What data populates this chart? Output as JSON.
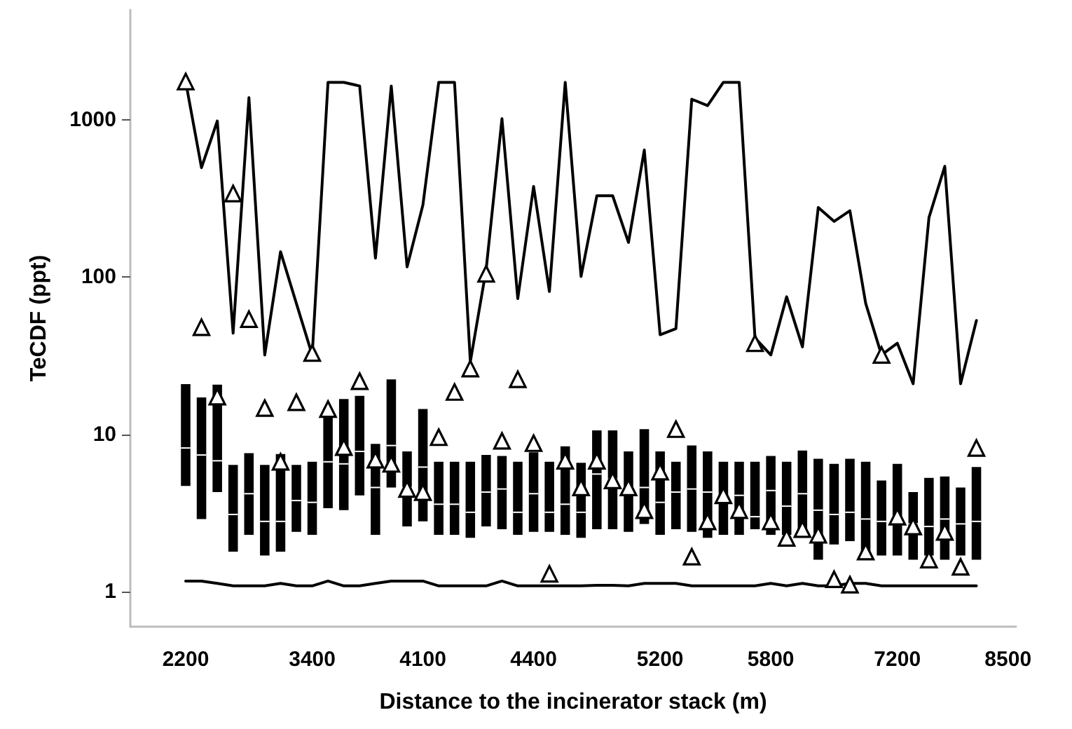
{
  "chart_data": {
    "type": "box",
    "xlabel": "Distance to the incinerator stack (m)",
    "ylabel": "TeCDF (ppt)",
    "log": "y",
    "grid": false,
    "ylim": [
      0.6,
      5000
    ],
    "yticks": [
      1,
      10,
      100,
      1000
    ],
    "categories": [
      null,
      null,
      null,
      "2200",
      null,
      null,
      null,
      null,
      null,
      null,
      null,
      "3400",
      null,
      null,
      null,
      null,
      null,
      null,
      "4100",
      null,
      null,
      null,
      null,
      null,
      null,
      "4400",
      null,
      null,
      null,
      null,
      null,
      null,
      null,
      "5200",
      null,
      null,
      null,
      null,
      null,
      null,
      "5800",
      null,
      null,
      null,
      null,
      null,
      null,
      null,
      "7200",
      null,
      null,
      null,
      null,
      null,
      null,
      "8500"
    ],
    "series": [
      {
        "type": "line",
        "color": "#000000",
        "marker": "none",
        "line_style": "solid",
        "values": [
          null,
          null,
          null,
          1750,
          496,
          982,
          44,
          1382,
          32,
          145,
          68,
          32,
          1730,
          1730,
          1640,
          132,
          1640,
          116,
          287,
          1730,
          1730,
          29,
          112,
          1016,
          73,
          377,
          81,
          1730,
          101,
          329,
          329,
          166,
          642,
          43,
          47,
          1352,
          1230,
          1730,
          1730,
          41,
          32,
          75,
          36,
          277,
          226,
          264,
          68,
          32,
          38,
          21,
          239,
          506,
          21,
          53,
          null,
          null
        ]
      },
      {
        "type": "line",
        "color": "#000000",
        "marker": "none",
        "line_style": "solid",
        "values": [
          null,
          null,
          null,
          1.17,
          1.17,
          1.13,
          1.09,
          1.09,
          1.09,
          1.13,
          1.09,
          1.09,
          1.17,
          1.09,
          1.09,
          1.13,
          1.17,
          1.17,
          1.17,
          1.09,
          1.09,
          1.09,
          1.09,
          1.17,
          1.09,
          1.09,
          1.09,
          1.09,
          1.09,
          1.1,
          1.1,
          1.09,
          1.13,
          1.13,
          1.13,
          1.09,
          1.09,
          1.09,
          1.09,
          1.09,
          1.13,
          1.09,
          1.13,
          1.09,
          1.09,
          1.13,
          1.13,
          1.09,
          1.09,
          1.09,
          1.09,
          1.09,
          1.09,
          1.09,
          null,
          null
        ]
      },
      {
        "color": "#000000",
        "boxes": [
          null,
          null,
          null,
          {
            "low": 4.7,
            "q1": 4.7,
            "median": 8.2,
            "q3": 20.9,
            "high": 20.9
          },
          {
            "low": 2.9,
            "q1": 2.9,
            "median": 7.4,
            "q3": 17.2,
            "high": 17.2
          },
          {
            "low": 4.3,
            "q1": 4.3,
            "median": 6.8,
            "q3": 20.7,
            "high": 20.7
          },
          {
            "low": 1.8,
            "q1": 1.8,
            "median": 3.1,
            "q3": 6.4,
            "high": 6.4
          },
          {
            "low": 2.3,
            "q1": 2.3,
            "median": 4.2,
            "q3": 7.6,
            "high": 7.6
          },
          {
            "low": 1.7,
            "q1": 1.7,
            "median": 2.8,
            "q3": 6.4,
            "high": 6.4
          },
          {
            "low": 1.8,
            "q1": 1.8,
            "median": 2.8,
            "q3": 7.5,
            "high": 7.5
          },
          {
            "low": 2.4,
            "q1": 2.4,
            "median": 3.8,
            "q3": 6.4,
            "high": 6.4
          },
          {
            "low": 2.3,
            "q1": 2.3,
            "median": 3.7,
            "q3": 6.7,
            "high": 6.7
          },
          {
            "low": 3.4,
            "q1": 3.4,
            "median": 6.7,
            "q3": 14.7,
            "high": 14.7
          },
          {
            "low": 3.3,
            "q1": 3.3,
            "median": 6.5,
            "q3": 16.8,
            "high": 16.8
          },
          {
            "low": 4.1,
            "q1": 4.1,
            "median": 7.8,
            "q3": 17.6,
            "high": 17.6
          },
          {
            "low": 2.3,
            "q1": 2.3,
            "median": 4.6,
            "q3": 8.7,
            "high": 8.7
          },
          {
            "low": 4.6,
            "q1": 4.6,
            "median": 8.5,
            "q3": 22.4,
            "high": 22.4
          },
          {
            "low": 2.6,
            "q1": 2.6,
            "median": 4.6,
            "q3": 7.8,
            "high": 7.8
          },
          {
            "low": 2.8,
            "q1": 2.8,
            "median": 6.2,
            "q3": 14.5,
            "high": 14.5
          },
          {
            "low": 2.3,
            "q1": 2.3,
            "median": 3.6,
            "q3": 6.7,
            "high": 6.7
          },
          {
            "low": 2.3,
            "q1": 2.3,
            "median": 3.6,
            "q3": 6.7,
            "high": 6.7
          },
          {
            "low": 2.2,
            "q1": 2.2,
            "median": 3.2,
            "q3": 6.7,
            "high": 6.7
          },
          {
            "low": 2.6,
            "q1": 2.6,
            "median": 4.3,
            "q3": 7.4,
            "high": 7.4
          },
          {
            "low": 2.5,
            "q1": 2.5,
            "median": 4.5,
            "q3": 7.3,
            "high": 7.3
          },
          {
            "low": 2.3,
            "q1": 2.3,
            "median": 3.2,
            "q3": 6.7,
            "high": 6.7
          },
          {
            "low": 2.4,
            "q1": 2.4,
            "median": 4.2,
            "q3": 7.7,
            "high": 7.7
          },
          {
            "low": 2.4,
            "q1": 2.4,
            "median": 3.2,
            "q3": 6.7,
            "high": 6.7
          },
          {
            "low": 2.3,
            "q1": 2.3,
            "median": 3.6,
            "q3": 8.4,
            "high": 8.4
          },
          {
            "low": 2.2,
            "q1": 2.2,
            "median": 3.2,
            "q3": 6.6,
            "high": 6.6
          },
          {
            "low": 2.5,
            "q1": 2.5,
            "median": 5.6,
            "q3": 10.6,
            "high": 10.6
          },
          {
            "low": 2.5,
            "q1": 2.5,
            "median": 5.2,
            "q3": 10.6,
            "high": 10.6
          },
          {
            "low": 2.4,
            "q1": 2.4,
            "median": 4.5,
            "q3": 7.8,
            "high": 7.8
          },
          {
            "low": 2.7,
            "q1": 2.7,
            "median": 4.6,
            "q3": 10.8,
            "high": 10.8
          },
          {
            "low": 2.3,
            "q1": 2.3,
            "median": 3.7,
            "q3": 7.8,
            "high": 7.8
          },
          {
            "low": 2.5,
            "q1": 2.5,
            "median": 4.3,
            "q3": 6.7,
            "high": 6.7
          },
          {
            "low": 2.4,
            "q1": 2.4,
            "median": 4.5,
            "q3": 8.5,
            "high": 8.5
          },
          {
            "low": 2.2,
            "q1": 2.2,
            "median": 4.3,
            "q3": 7.8,
            "high": 7.8
          },
          {
            "low": 2.3,
            "q1": 2.3,
            "median": 4.1,
            "q3": 6.7,
            "high": 6.7
          },
          {
            "low": 2.3,
            "q1": 2.3,
            "median": 4.1,
            "q3": 6.7,
            "high": 6.7
          },
          {
            "low": 2.5,
            "q1": 2.5,
            "median": 3.0,
            "q3": 6.7,
            "high": 6.7
          },
          {
            "low": 2.3,
            "q1": 2.3,
            "median": 4.4,
            "q3": 7.3,
            "high": 7.3
          },
          {
            "low": 2.3,
            "q1": 2.3,
            "median": 3.5,
            "q3": 6.7,
            "high": 6.7
          },
          {
            "low": 2.3,
            "q1": 2.3,
            "median": 4.2,
            "q3": 7.9,
            "high": 7.9
          },
          {
            "low": 1.6,
            "q1": 1.6,
            "median": 3.3,
            "q3": 7.0,
            "high": 7.0
          },
          {
            "low": 2.0,
            "q1": 2.0,
            "median": 3.1,
            "q3": 6.5,
            "high": 6.5
          },
          {
            "low": 2.1,
            "q1": 2.1,
            "median": 3.2,
            "q3": 7.0,
            "high": 7.0
          },
          {
            "low": 1.8,
            "q1": 1.8,
            "median": 2.9,
            "q3": 6.7,
            "high": 6.7
          },
          {
            "low": 1.7,
            "q1": 1.7,
            "median": 2.8,
            "q3": 5.1,
            "high": 5.1
          },
          {
            "low": 1.7,
            "q1": 1.7,
            "median": 3.0,
            "q3": 6.5,
            "high": 6.5
          },
          {
            "low": 1.6,
            "q1": 1.6,
            "median": 2.7,
            "q3": 4.3,
            "high": 4.3
          },
          {
            "low": 1.7,
            "q1": 1.7,
            "median": 2.6,
            "q3": 5.3,
            "high": 5.3
          },
          {
            "low": 1.6,
            "q1": 1.6,
            "median": 2.9,
            "q3": 5.4,
            "high": 5.4
          },
          {
            "low": 1.7,
            "q1": 1.7,
            "median": 2.7,
            "q3": 4.6,
            "high": 4.6
          },
          {
            "low": 1.6,
            "q1": 1.6,
            "median": 2.8,
            "q3": 6.2,
            "high": 6.2
          },
          null,
          null
        ]
      },
      {
        "type": "scatter",
        "color": "#000000",
        "marker": "triangle",
        "values": [
          null,
          null,
          null,
          1750,
          48,
          17.4,
          340,
          54,
          14.7,
          6.7,
          16.0,
          32.9,
          14.5,
          8.3,
          21.8,
          6.9,
          6.5,
          4.5,
          4.3,
          9.6,
          18.6,
          26.2,
          105,
          9.1,
          22.4,
          8.8,
          1.3,
          6.8,
          4.6,
          6.8,
          5.1,
          4.6,
          3.3,
          5.8,
          10.8,
          1.67,
          2.8,
          4.1,
          3.3,
          38,
          2.8,
          2.2,
          2.5,
          2.3,
          1.2,
          1.11,
          1.8,
          32,
          3.0,
          2.6,
          1.6,
          2.4,
          1.44,
          8.2,
          null,
          null
        ]
      }
    ]
  }
}
